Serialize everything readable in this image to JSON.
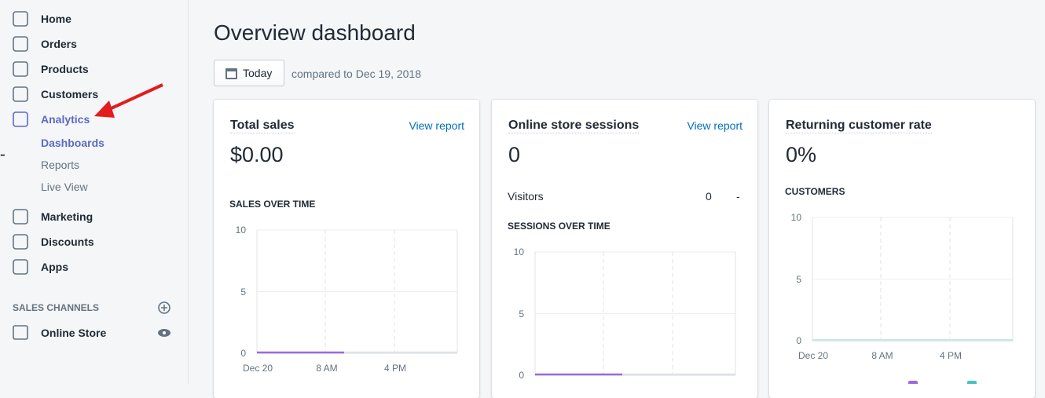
{
  "nav": {
    "main": [
      "Home",
      "Orders",
      "Products",
      "Customers",
      "Analytics"
    ],
    "analytics_sub": [
      "Dashboards",
      "Reports",
      "Live View"
    ],
    "more": [
      "Marketing",
      "Discounts",
      "Apps"
    ],
    "section": "SALES CHANNELS",
    "channel": "Online Store"
  },
  "header": {
    "title": "Overview dashboard",
    "date_button": "Today",
    "comparison": "compared to Dec 19, 2018"
  },
  "cards": [
    {
      "title": "Total sales",
      "link": "View report",
      "value": "$0.00",
      "change": "-",
      "chart": {
        "title": "SALES OVER TIME",
        "yticks": [
          "10",
          "5",
          "0"
        ],
        "xticks": [
          "Dec 20",
          "8 AM",
          "4 PM"
        ]
      }
    },
    {
      "title": "Online store sessions",
      "link": "View report",
      "value": "0",
      "change": "-",
      "metric": {
        "label": "Visitors",
        "value": "0",
        "change": "-"
      },
      "chart": {
        "title": "SESSIONS OVER TIME",
        "yticks": [
          "10",
          "5",
          "0"
        ]
      }
    },
    {
      "title": "Returning customer rate",
      "value": "0%",
      "change": "-",
      "chart": {
        "title": "CUSTOMERS",
        "yticks": [
          "10",
          "5",
          "0"
        ],
        "xticks": [
          "Dec 20",
          "8 AM",
          "4 PM"
        ]
      }
    }
  ]
}
